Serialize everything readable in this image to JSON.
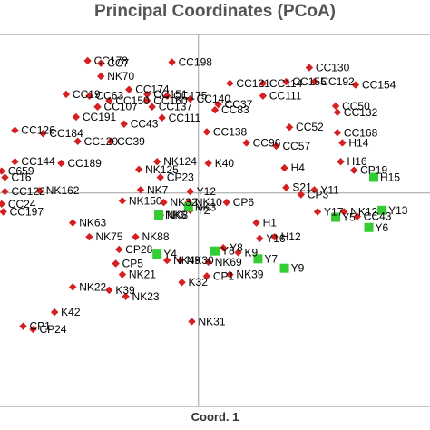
{
  "chart_data": {
    "type": "scatter",
    "title": "Principal Coordinates (PCoA)",
    "xlabel": "Coord. 1",
    "ylabel": "",
    "xlim": [
      -1.2,
      1.4
    ],
    "ylim": [
      -1.35,
      1.0
    ],
    "grid": false,
    "legend": "none",
    "colors": {
      "red_group": "#d42020",
      "green_group": "#33cc33",
      "axis": "#a0a0a0",
      "frame": "#888888"
    },
    "series": [
      {
        "marker": "diamond",
        "color": "#d42020",
        "points": [
          {
            "label": "CC178",
            "x": -0.67,
            "y": 0.844
          },
          {
            "label": "CC7",
            "x": -0.59,
            "y": 0.828
          },
          {
            "label": "CC198",
            "x": -0.16,
            "y": 0.835
          },
          {
            "label": "CC130",
            "x": 0.67,
            "y": 0.8
          },
          {
            "label": "NK70",
            "x": -0.59,
            "y": 0.745
          },
          {
            "label": "CC121",
            "x": 0.19,
            "y": 0.7
          },
          {
            "label": "CC114",
            "x": 0.39,
            "y": 0.7
          },
          {
            "label": "CC155",
            "x": 0.53,
            "y": 0.71
          },
          {
            "label": "CC192",
            "x": 0.7,
            "y": 0.71
          },
          {
            "label": "CC154",
            "x": 0.95,
            "y": 0.69
          },
          {
            "label": "CC174",
            "x": -0.42,
            "y": 0.66
          },
          {
            "label": "CC19",
            "x": -0.8,
            "y": 0.63
          },
          {
            "label": "CC63",
            "x": -0.66,
            "y": 0.62
          },
          {
            "label": "CC151",
            "x": -0.31,
            "y": 0.63
          },
          {
            "label": "CC175",
            "x": -0.19,
            "y": 0.62
          },
          {
            "label": "CC140",
            "x": -0.05,
            "y": 0.6
          },
          {
            "label": "CC111",
            "x": 0.39,
            "y": 0.62
          },
          {
            "label": "CC150",
            "x": -0.54,
            "y": 0.59
          },
          {
            "label": "CC160",
            "x": -0.31,
            "y": 0.59
          },
          {
            "label": "CC37",
            "x": 0.12,
            "y": 0.565
          },
          {
            "label": "CC107",
            "x": -0.61,
            "y": 0.55
          },
          {
            "label": "CC137",
            "x": -0.28,
            "y": 0.55
          },
          {
            "label": "CC83",
            "x": 0.1,
            "y": 0.53
          },
          {
            "label": "CC50",
            "x": 0.83,
            "y": 0.555
          },
          {
            "label": "CC132",
            "x": 0.84,
            "y": 0.515
          },
          {
            "label": "CC191",
            "x": -0.74,
            "y": 0.485
          },
          {
            "label": "CC43",
            "x": -0.45,
            "y": 0.44
          },
          {
            "label": "CC111",
            "x": -0.22,
            "y": 0.48
          },
          {
            "label": "CC126",
            "x": -1.11,
            "y": 0.4
          },
          {
            "label": "CC184",
            "x": -0.94,
            "y": 0.38
          },
          {
            "label": "CC120",
            "x": -0.73,
            "y": 0.33
          },
          {
            "label": "CC39",
            "x": -0.53,
            "y": 0.33
          },
          {
            "label": "CC138",
            "x": 0.05,
            "y": 0.39
          },
          {
            "label": "CC96",
            "x": 0.29,
            "y": 0.32
          },
          {
            "label": "CC52",
            "x": 0.55,
            "y": 0.42
          },
          {
            "label": "CC57",
            "x": 0.47,
            "y": 0.3
          },
          {
            "label": "CC168",
            "x": 0.84,
            "y": 0.385
          },
          {
            "label": "H14",
            "x": 0.87,
            "y": 0.32
          },
          {
            "label": "CC144",
            "x": -1.11,
            "y": 0.2
          },
          {
            "label": "CC189",
            "x": -0.83,
            "y": 0.19
          },
          {
            "label": "NK124",
            "x": -0.25,
            "y": 0.2
          },
          {
            "label": "K40",
            "x": 0.06,
            "y": 0.19
          },
          {
            "label": "NK125",
            "x": -0.36,
            "y": 0.15
          },
          {
            "label": "CP23",
            "x": -0.23,
            "y": 0.1
          },
          {
            "label": "H4",
            "x": 0.52,
            "y": 0.16
          },
          {
            "label": "H16",
            "x": 0.86,
            "y": 0.2
          },
          {
            "label": "CP19",
            "x": 0.94,
            "y": 0.145
          },
          {
            "label": "C659",
            "x": -1.19,
            "y": 0.14
          },
          {
            "label": "C16",
            "x": -1.17,
            "y": 0.1
          },
          {
            "label": "CC122",
            "x": -1.17,
            "y": 0.01
          },
          {
            "label": "NK162",
            "x": -0.96,
            "y": 0.015
          },
          {
            "label": "NK7",
            "x": -0.35,
            "y": 0.02
          },
          {
            "label": "Y12",
            "x": -0.05,
            "y": 0.01
          },
          {
            "label": "S21",
            "x": 0.53,
            "y": 0.035
          },
          {
            "label": "Y11",
            "x": 0.7,
            "y": 0.02
          },
          {
            "label": "CP3",
            "x": 0.62,
            "y": -0.01
          },
          {
            "label": "CC24",
            "x": -1.19,
            "y": -0.07
          },
          {
            "label": "NK150",
            "x": -0.46,
            "y": -0.05
          },
          {
            "label": "NK32",
            "x": -0.21,
            "y": -0.06
          },
          {
            "label": "NK10",
            "x": -0.06,
            "y": -0.06
          },
          {
            "label": "CP6",
            "x": 0.17,
            "y": -0.06
          },
          {
            "label": "CC197",
            "x": -1.18,
            "y": -0.12
          },
          {
            "label": "Y2",
            "x": -0.05,
            "y": -0.11
          },
          {
            "label": "NK8",
            "x": -0.23,
            "y": -0.14
          },
          {
            "label": "NK63",
            "x": -0.76,
            "y": -0.19
          },
          {
            "label": "Y17",
            "x": 0.72,
            "y": -0.12
          },
          {
            "label": "NK12",
            "x": 0.88,
            "y": -0.12
          },
          {
            "label": "CC43",
            "x": 0.96,
            "y": -0.15
          },
          {
            "label": "H1",
            "x": 0.35,
            "y": -0.19
          },
          {
            "label": "NK88",
            "x": -0.38,
            "y": -0.28
          },
          {
            "label": "NK75",
            "x": -0.66,
            "y": -0.28
          },
          {
            "label": "H12",
            "x": 0.46,
            "y": -0.28
          },
          {
            "label": "Y16",
            "x": 0.37,
            "y": -0.29
          },
          {
            "label": "K9",
            "x": 0.24,
            "y": -0.38
          },
          {
            "label": "Y8",
            "x": 0.15,
            "y": -0.35
          },
          {
            "label": "CP28",
            "x": -0.48,
            "y": -0.36
          },
          {
            "label": "NK49",
            "x": -0.19,
            "y": -0.43
          },
          {
            "label": "NK30",
            "x": -0.11,
            "y": -0.43
          },
          {
            "label": "NK69",
            "x": 0.06,
            "y": -0.44
          },
          {
            "label": "CP5",
            "x": -0.5,
            "y": -0.45
          },
          {
            "label": "NK21",
            "x": -0.46,
            "y": -0.52
          },
          {
            "label": "NK39",
            "x": 0.19,
            "y": -0.52
          },
          {
            "label": "CP1",
            "x": 0.05,
            "y": -0.53
          },
          {
            "label": "K32",
            "x": -0.1,
            "y": -0.57
          },
          {
            "label": "NK22",
            "x": -0.76,
            "y": -0.6
          },
          {
            "label": "K39",
            "x": -0.54,
            "y": -0.62
          },
          {
            "label": "NK23",
            "x": -0.44,
            "y": -0.66
          },
          {
            "label": "K42",
            "x": -0.87,
            "y": -0.76
          },
          {
            "label": "NK31",
            "x": -0.04,
            "y": -0.82
          },
          {
            "label": "CP1",
            "x": -1.06,
            "y": -0.85
          },
          {
            "label": "CP24",
            "x": -1.0,
            "y": -0.87
          }
        ]
      },
      {
        "marker": "square",
        "color": "#33cc33",
        "points": [
          {
            "label": "H15",
            "x": 1.06,
            "y": 0.1
          },
          {
            "label": "Y13",
            "x": 1.11,
            "y": -0.11
          },
          {
            "label": "Y6",
            "x": 1.03,
            "y": -0.22
          },
          {
            "label": "Y5",
            "x": 0.83,
            "y": -0.155
          },
          {
            "label": "NK6",
            "x": -0.24,
            "y": -0.14
          },
          {
            "label": "NK3",
            "x": -0.06,
            "y": -0.09
          },
          {
            "label": "Y4",
            "x": -0.25,
            "y": -0.39
          },
          {
            "label": "Y8",
            "x": 0.1,
            "y": -0.37
          },
          {
            "label": "Y7",
            "x": 0.36,
            "y": -0.42
          },
          {
            "label": "Y9",
            "x": 0.52,
            "y": -0.48
          }
        ]
      }
    ]
  }
}
